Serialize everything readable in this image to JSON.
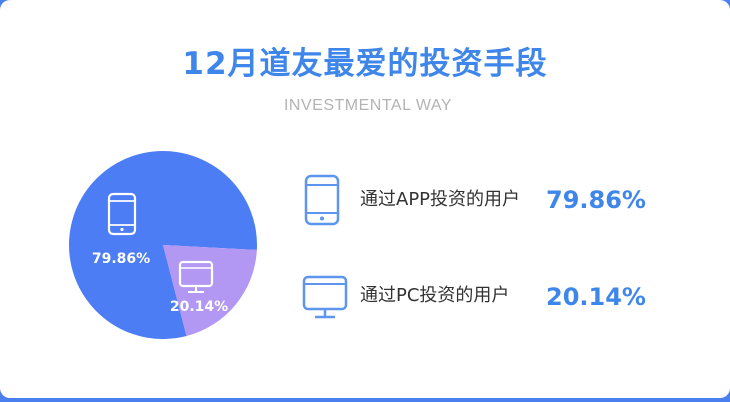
{
  "colors": {
    "accent": "#3f86ea",
    "app_slice": "#4c7df5",
    "pc_slice": "#b297f3",
    "background": "#4a7ff0"
  },
  "header": {
    "title": "12月道友最爱的投资手段",
    "subtitle": "INVESTMENTAL WAY"
  },
  "legend": [
    {
      "icon": "phone-icon",
      "label": "通过APP投资的用户",
      "value": "79.86%"
    },
    {
      "icon": "monitor-icon",
      "label": "通过PC投资的用户",
      "value": "20.14%"
    }
  ],
  "chart_data": {
    "type": "pie",
    "categories": [
      "通过APP投资的用户",
      "通过PC投资的用户"
    ],
    "values": [
      79.86,
      20.14
    ],
    "labels": [
      "79.86%",
      "20.14%"
    ],
    "icons": [
      "phone-icon",
      "monitor-icon"
    ],
    "title": "12月道友最爱的投资手段",
    "subtitle": "INVESTMENTAL WAY"
  }
}
